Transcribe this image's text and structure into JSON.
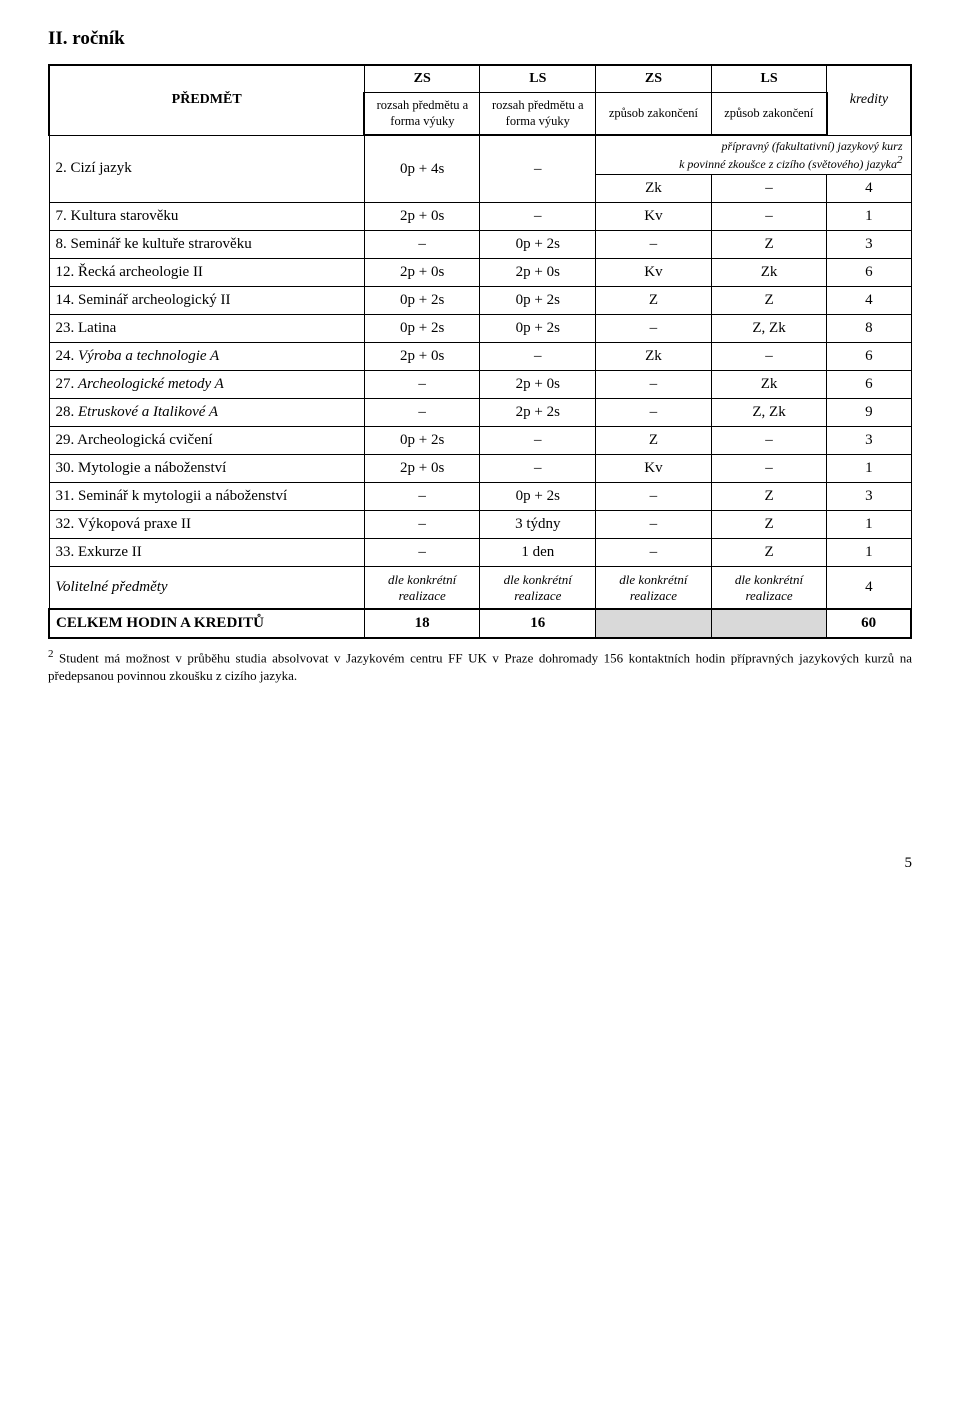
{
  "heading": "II. ročník",
  "header": {
    "predmet": "PŘEDMĚT",
    "zs": "ZS",
    "ls": "LS",
    "zs2": "ZS",
    "ls2": "LS",
    "kredy": "kredity",
    "rozsah": "rozsah předmětu a forma výuky",
    "zpusob": "způsob zakončení"
  },
  "cizi": {
    "label": "2.   Cizí jazyk",
    "zs": "0p + 4s",
    "ls": "–",
    "kurz_line1": "přípravný (fakultativní) jazykový kurz",
    "kurz_line2_pre": "k povinné zkoušce z cizího (světového) jazyka",
    "sup": "2",
    "zk_a": "Zk",
    "zk_b": "–",
    "zk_c": "4"
  },
  "rows": [
    {
      "label": "7.   Kultura starověku",
      "a": "2p + 0s",
      "b": "–",
      "c": "Kv",
      "d": "–",
      "e": "1"
    },
    {
      "label": "8.   Seminář ke kultuře strarověku",
      "a": "–",
      "b": "0p + 2s",
      "c": "–",
      "d": "Z",
      "e": "3"
    },
    {
      "label": "12. Řecká archeologie II",
      "a": "2p + 0s",
      "b": "2p + 0s",
      "c": "Kv",
      "d": "Zk",
      "e": "6"
    },
    {
      "label": "14. Seminář archeologický II",
      "a": "0p + 2s",
      "b": "0p + 2s",
      "c": "Z",
      "d": "Z",
      "e": "4"
    },
    {
      "label": "23. Latina",
      "a": "0p + 2s",
      "b": "0p + 2s",
      "c": "–",
      "d": "Z, Zk",
      "e": "8"
    },
    {
      "label": "24. Výroba a technologie A",
      "a": "2p + 0s",
      "b": "–",
      "c": "Zk",
      "d": "–",
      "e": "6",
      "ital": true
    },
    {
      "label": "27. Archeologické metody A",
      "a": "–",
      "b": "2p + 0s",
      "c": "–",
      "d": "Zk",
      "e": "6",
      "ital": true
    },
    {
      "label": "28. Etruskové a Italikové A",
      "a": "–",
      "b": "2p + 2s",
      "c": "–",
      "d": "Z, Zk",
      "e": "9",
      "ital": true
    },
    {
      "label": "29. Archeologická cvičení",
      "a": "0p + 2s",
      "b": "–",
      "c": "Z",
      "d": "–",
      "e": "3"
    },
    {
      "label": "30. Mytologie a náboženství",
      "a": "2p + 0s",
      "b": "–",
      "c": "Kv",
      "d": "–",
      "e": "1"
    },
    {
      "label": "31. Seminář k mytologii a náboženství",
      "a": "–",
      "b": "0p + 2s",
      "c": "–",
      "d": "Z",
      "e": "3"
    },
    {
      "label": "32. Výkopová praxe II",
      "a": "–",
      "b": "3 týdny",
      "c": "–",
      "d": "Z",
      "e": "1"
    },
    {
      "label": "33. Exkurze II",
      "a": "–",
      "b": "1 den",
      "c": "–",
      "d": "Z",
      "e": "1"
    }
  ],
  "optional": {
    "label": "Volitelné předměty",
    "cell": "dle konkrétní realizace",
    "k": "4"
  },
  "sum": {
    "label": "CELKEM HODIN A KREDITŮ",
    "a": "18",
    "b": "16",
    "e": "60"
  },
  "footnote_sup": "2",
  "footnote": " Student má možnost v průběhu studia absolvovat v Jazykovém centru FF UK v Praze dohromady 156 kontaktních hodin přípravných jazykových kurzů na předepsanou povinnou zkoušku z cizího jazyka.",
  "pagenum": "5"
}
